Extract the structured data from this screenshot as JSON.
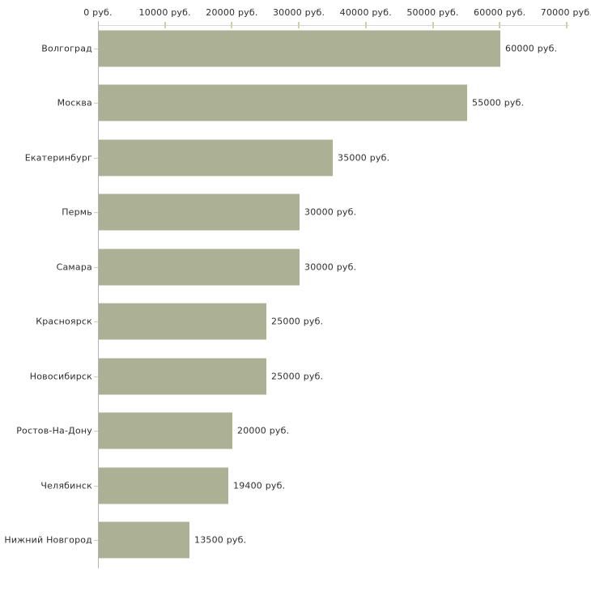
{
  "chart_data": {
    "type": "bar",
    "orientation": "horizontal",
    "title": "",
    "xlabel": "",
    "ylabel": "",
    "grid": "off",
    "legend": "none",
    "categories": [
      "Волгоград",
      "Москва",
      "Екатеринбург",
      "Пермь",
      "Самара",
      "Красноярск",
      "Новосибирск",
      "Ростов-На-Дону",
      "Челябинск",
      "Нижний Новгород"
    ],
    "values": [
      60000,
      55000,
      35000,
      30000,
      30000,
      25000,
      25000,
      20000,
      19400,
      13500
    ],
    "value_labels": [
      "60000 руб.",
      "55000 руб.",
      "35000 руб.",
      "30000 руб.",
      "30000 руб.",
      "25000 руб.",
      "25000 руб.",
      "20000 руб.",
      "19400 руб.",
      "13500 руб."
    ],
    "x_axis": {
      "position": "top",
      "range": [
        0,
        70000
      ],
      "ticks": [
        0,
        10000,
        20000,
        30000,
        40000,
        50000,
        60000,
        70000
      ],
      "tick_labels": [
        "0 руб.",
        "10000 руб.",
        "20000 руб.",
        "30000 руб.",
        "40000 руб.",
        "50000 руб.",
        "60000 руб.",
        "70000 руб."
      ]
    },
    "colors": {
      "bar": "#acb196",
      "axis_line_x": "#d7d7d4",
      "axis_line_y": "#b4b4b4",
      "tick_mark": "#cdd1ab",
      "text": "#2e2e2e",
      "background": "#ffffff"
    }
  }
}
